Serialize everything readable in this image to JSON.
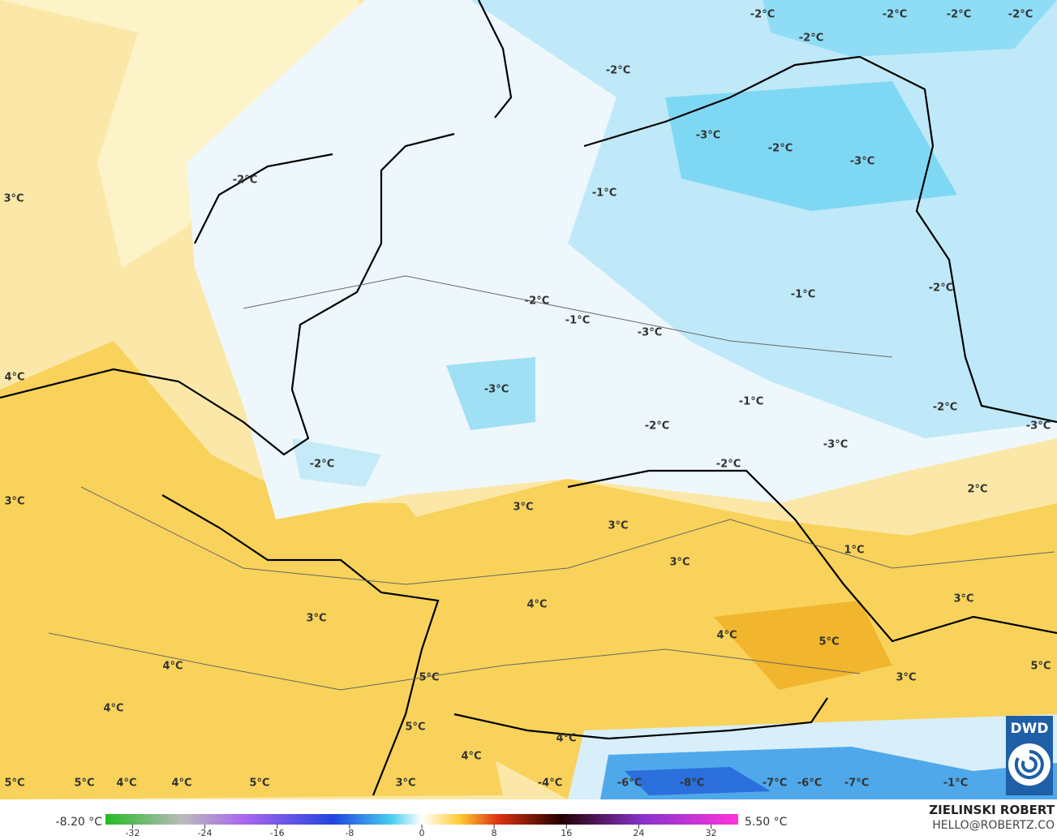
{
  "map": {
    "labels": [
      "-2°C",
      "-2°C",
      "-2°C",
      "-2°C",
      "-2°C",
      "-2°C",
      "-2°C",
      "-3°C",
      "-2°C",
      "-3°C",
      "-1°C",
      "-1°C",
      "-2°C",
      "-2°C",
      "-1°C",
      "-3°C",
      "-3°C",
      "-1°C",
      "-2°C",
      "-3°C",
      "-2°C",
      "-3°C",
      "-2°C",
      "-2°C",
      "2°C",
      "3°C",
      "4°C",
      "3°C",
      "3°C",
      "3°C",
      "3°C",
      "1°C",
      "3°C",
      "4°C",
      "3°C",
      "4°C",
      "5°C",
      "4°C",
      "5°C",
      "3°C",
      "5°C",
      "4°C",
      "5°C",
      "4°C",
      "4°C",
      "5°C",
      "5°C",
      "4°C",
      "4°C",
      "5°C",
      "3°C",
      "-4°C",
      "-6°C",
      "-8°C",
      "-7°C",
      "-6°C",
      "-7°C",
      "-1°C"
    ],
    "logo": "DWD"
  },
  "colorbar": {
    "min_label": "-8.20 °C",
    "max_label": "5.50 °C",
    "range": [
      -35,
      35
    ],
    "ticks": [
      -32,
      -24,
      -16,
      -8,
      0,
      8,
      16,
      24,
      32
    ]
  },
  "credit": {
    "name": "ZIELINSKI ROBERT",
    "contact": "HELLO@ROBERTZ.CO"
  }
}
